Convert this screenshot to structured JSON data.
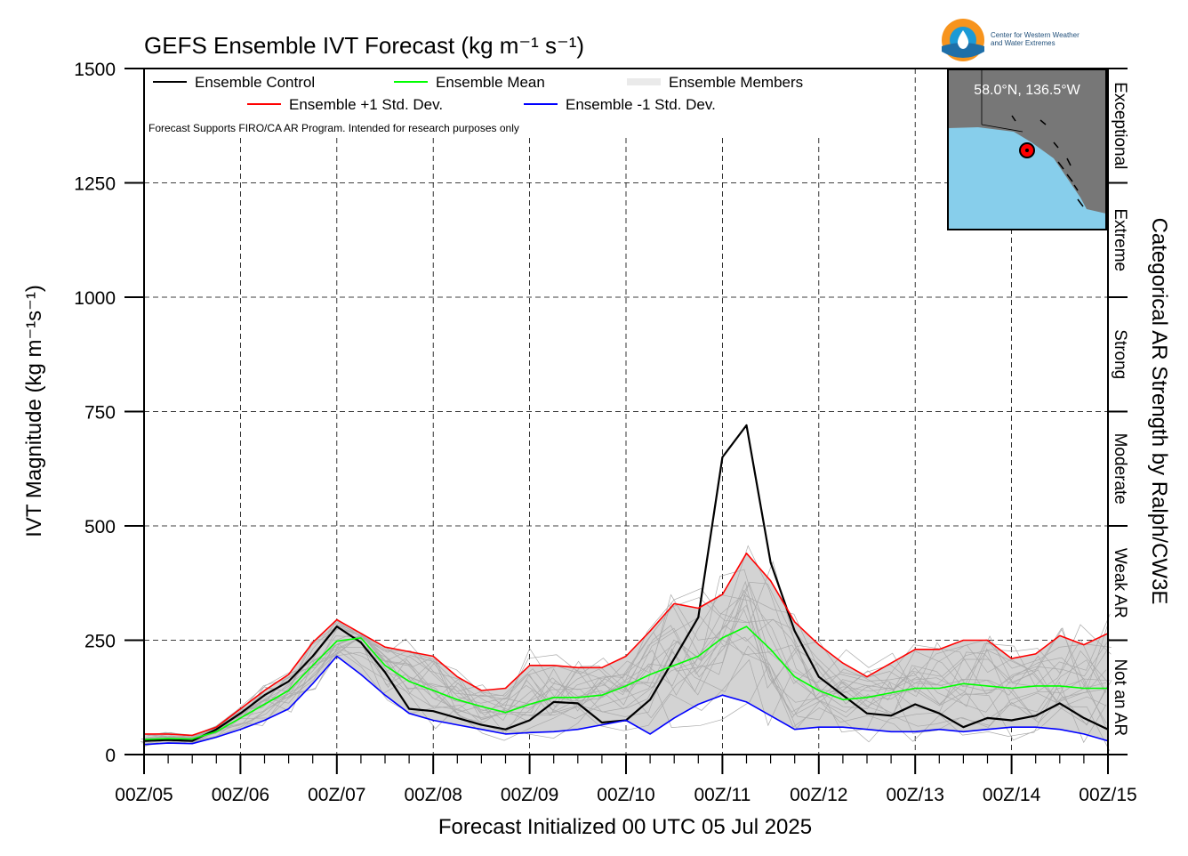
{
  "chart_data": {
    "type": "line",
    "title": "GEFS Ensemble IVT Forecast (kg m⁻¹ s⁻¹)",
    "xlabel": "Forecast Initialized 00 UTC 05 Jul 2025",
    "ylabel": "IVT Magnitude (kg m⁻¹s⁻¹)",
    "right_label": "Categorical AR Strength by Ralph/CW3E",
    "ylim": [
      0,
      1500
    ],
    "yticks": [
      0,
      250,
      500,
      750,
      1000,
      1250,
      1500
    ],
    "xlim": [
      0,
      240
    ],
    "xticks": [
      0,
      24,
      48,
      72,
      96,
      120,
      144,
      168,
      192,
      216,
      240
    ],
    "xtick_labels": [
      "00Z/05",
      "00Z/06",
      "00Z/07",
      "00Z/08",
      "00Z/09",
      "00Z/10",
      "00Z/11",
      "00Z/12",
      "00Z/13",
      "00Z/14",
      "00Z/15"
    ],
    "x_unit": "forecast hours",
    "grid": true,
    "legend_position": "top-left",
    "categories_right": [
      {
        "label": "Not an AR",
        "range": [
          0,
          250
        ]
      },
      {
        "label": "Weak AR",
        "range": [
          250,
          500
        ]
      },
      {
        "label": "Moderate",
        "range": [
          500,
          750
        ]
      },
      {
        "label": "Strong",
        "range": [
          750,
          1000
        ]
      },
      {
        "label": "Extreme",
        "range": [
          1000,
          1250
        ]
      },
      {
        "label": "Exceptional",
        "range": [
          1250,
          1500
        ]
      }
    ],
    "note": "Forecast Supports FIRO/CA AR Program. Intended for research purposes only",
    "logo_text": [
      "Center for Western Weather",
      "and Water Extremes"
    ],
    "inset_location": "58.0°N, 136.5°W",
    "legend": [
      {
        "label": "Ensemble Control",
        "color": "#000000",
        "key": "control"
      },
      {
        "label": "Ensemble Mean",
        "color": "#00ff00",
        "key": "mean"
      },
      {
        "label": "Ensemble Members",
        "color": "#aaaaaa",
        "key": "members"
      },
      {
        "label": "Ensemble +1 Std. Dev.",
        "color": "#ff0000",
        "key": "plus"
      },
      {
        "label": "Ensemble -1 Std. Dev.",
        "color": "#0000ff",
        "key": "minus"
      }
    ],
    "series": [
      {
        "name": "Ensemble Control",
        "color": "#000000",
        "x": [
          0,
          6,
          12,
          18,
          24,
          30,
          36,
          42,
          48,
          54,
          60,
          66,
          72,
          78,
          84,
          90,
          96,
          102,
          108,
          114,
          120,
          126,
          132,
          138,
          144,
          150,
          156,
          162,
          168,
          174,
          180,
          186,
          192,
          198,
          204,
          210,
          216,
          222,
          228,
          234,
          240
        ],
        "y": [
          30,
          32,
          30,
          55,
          90,
          130,
          160,
          215,
          280,
          245,
          180,
          100,
          95,
          80,
          65,
          55,
          75,
          115,
          112,
          70,
          75,
          120,
          210,
          300,
          650,
          720,
          420,
          270,
          170,
          130,
          90,
          85,
          110,
          90,
          60,
          80,
          75,
          85,
          112,
          80,
          55
        ]
      },
      {
        "name": "Ensemble Mean",
        "color": "#00ff00",
        "x": [
          0,
          6,
          12,
          18,
          24,
          30,
          36,
          42,
          48,
          54,
          60,
          66,
          72,
          78,
          84,
          90,
          96,
          102,
          108,
          114,
          120,
          126,
          132,
          138,
          144,
          150,
          156,
          162,
          168,
          174,
          180,
          186,
          192,
          198,
          204,
          210,
          216,
          222,
          228,
          234,
          240
        ],
        "y": [
          33,
          35,
          34,
          50,
          80,
          110,
          140,
          195,
          248,
          255,
          195,
          160,
          140,
          120,
          105,
          92,
          110,
          125,
          125,
          130,
          150,
          175,
          195,
          215,
          255,
          280,
          230,
          170,
          140,
          120,
          125,
          135,
          145,
          145,
          155,
          150,
          145,
          150,
          150,
          145,
          145
        ]
      },
      {
        "name": "Ensemble +1 Std. Dev.",
        "color": "#ff0000",
        "x": [
          0,
          6,
          12,
          18,
          24,
          30,
          36,
          42,
          48,
          54,
          60,
          66,
          72,
          78,
          84,
          90,
          96,
          102,
          108,
          114,
          120,
          126,
          132,
          138,
          144,
          150,
          156,
          162,
          168,
          174,
          180,
          186,
          192,
          198,
          204,
          210,
          216,
          222,
          228,
          234,
          240
        ],
        "y": [
          45,
          45,
          42,
          60,
          100,
          140,
          175,
          245,
          295,
          265,
          235,
          225,
          215,
          170,
          140,
          145,
          195,
          195,
          190,
          190,
          215,
          270,
          330,
          320,
          350,
          440,
          380,
          290,
          240,
          200,
          170,
          200,
          230,
          230,
          250,
          250,
          210,
          220,
          260,
          240,
          265
        ]
      },
      {
        "name": "Ensemble -1 Std. Dev.",
        "color": "#0000ff",
        "x": [
          0,
          6,
          12,
          18,
          24,
          30,
          36,
          42,
          48,
          54,
          60,
          66,
          72,
          78,
          84,
          90,
          96,
          102,
          108,
          114,
          120,
          126,
          132,
          138,
          144,
          150,
          156,
          162,
          168,
          174,
          180,
          186,
          192,
          198,
          204,
          210,
          216,
          222,
          228,
          234,
          240
        ],
        "y": [
          22,
          25,
          24,
          38,
          55,
          75,
          100,
          155,
          215,
          175,
          130,
          90,
          75,
          65,
          55,
          45,
          48,
          50,
          55,
          65,
          75,
          45,
          80,
          110,
          130,
          115,
          85,
          55,
          60,
          60,
          55,
          50,
          50,
          55,
          50,
          55,
          60,
          60,
          55,
          45,
          30
        ]
      }
    ]
  }
}
